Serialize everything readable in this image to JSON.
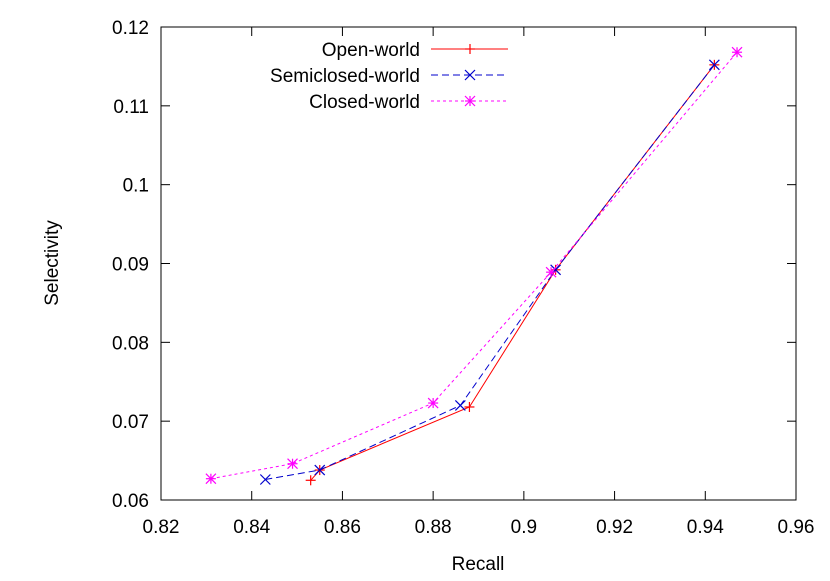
{
  "chart_data": {
    "type": "line",
    "title": "",
    "xlabel": "Recall",
    "ylabel": "Selectivity",
    "xlim": [
      0.82,
      0.96
    ],
    "ylim": [
      0.06,
      0.12
    ],
    "xticks": [
      "0.82",
      "0.84",
      "0.86",
      "0.88",
      "0.9",
      "0.92",
      "0.94",
      "0.96"
    ],
    "yticks": [
      "0.06",
      "0.07",
      "0.08",
      "0.09",
      "0.1",
      "0.11",
      "0.12"
    ],
    "xtick_values": [
      0.82,
      0.84,
      0.86,
      0.88,
      0.9,
      0.92,
      0.94,
      0.96
    ],
    "ytick_values": [
      0.06,
      0.07,
      0.08,
      0.09,
      0.1,
      0.11,
      0.12
    ],
    "grid": false,
    "legend_position": "top-left",
    "series": [
      {
        "name": "Open-world",
        "color": "#ff0000",
        "dash": "solid",
        "marker": "plus",
        "x": [
          0.853,
          0.855,
          0.888,
          0.907,
          0.942
        ],
        "y": [
          0.0625,
          0.0638,
          0.0718,
          0.0892,
          0.1152
        ]
      },
      {
        "name": "Semiclosed-world",
        "color": "#0000cc",
        "dash": "dashed",
        "marker": "cross",
        "x": [
          0.843,
          0.855,
          0.886,
          0.907,
          0.942
        ],
        "y": [
          0.0626,
          0.0638,
          0.072,
          0.0892,
          0.1152
        ]
      },
      {
        "name": "Closed-world",
        "color": "#ff00ff",
        "dash": "dotted",
        "marker": "star",
        "x": [
          0.831,
          0.849,
          0.88,
          0.906,
          0.947
        ],
        "y": [
          0.0627,
          0.0646,
          0.0723,
          0.0889,
          0.1168
        ]
      }
    ]
  }
}
